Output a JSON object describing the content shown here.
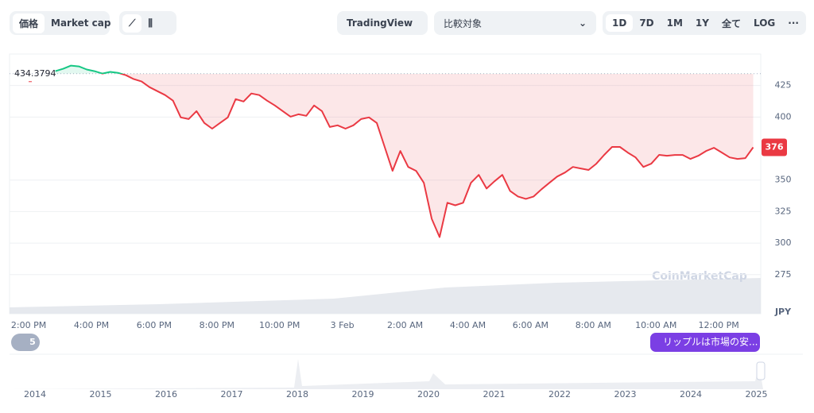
{
  "toolbar": {
    "tabs": [
      "価格",
      "Market cap"
    ],
    "tradingview": "TradingView",
    "compare": "比較対象",
    "ranges": [
      "1D",
      "7D",
      "1M",
      "1Y",
      "全て",
      "LOG"
    ],
    "more": "···"
  },
  "badge": "5",
  "news": "リップルは市場の安...",
  "watermark": "CoinMarketCap",
  "navigator": {
    "years": [
      "2014",
      "2015",
      "2016",
      "2017",
      "2018",
      "2019",
      "2020",
      "2021",
      "2022",
      "2023",
      "2024",
      "2025"
    ]
  },
  "chart_data": {
    "type": "line",
    "unit": "JPY",
    "baseline": 434.3794,
    "baseline_label": "434.3794",
    "last_label": "376",
    "up_color": "#16c784",
    "down_color": "#ea3943",
    "grid": true,
    "xlim": [
      13.39,
      37.34
    ],
    "ylim": [
      244,
      450
    ],
    "xticks": [
      {
        "value": 14,
        "label": "2:00 PM"
      },
      {
        "value": 16,
        "label": "4:00 PM"
      },
      {
        "value": 18,
        "label": "6:00 PM"
      },
      {
        "value": 20,
        "label": "8:00 PM"
      },
      {
        "value": 22,
        "label": "10:00 PM"
      },
      {
        "value": 24,
        "label": "3 Feb"
      },
      {
        "value": 26,
        "label": "2:00 AM"
      },
      {
        "value": 28,
        "label": "4:00 AM"
      },
      {
        "value": 30,
        "label": "6:00 AM"
      },
      {
        "value": 32,
        "label": "8:00 AM"
      },
      {
        "value": 34,
        "label": "10:00 AM"
      },
      {
        "value": 36,
        "label": "12:00 PM"
      }
    ],
    "yticks": [
      275,
      300,
      325,
      350,
      400,
      425
    ],
    "x": [
      14.85,
      15.1,
      15.35,
      15.6,
      15.85,
      16.1,
      16.35,
      16.6,
      16.85,
      17.1,
      17.35,
      17.6,
      17.85,
      18.1,
      18.35,
      18.6,
      18.85,
      19.1,
      19.35,
      19.6,
      19.85,
      20.1,
      20.35,
      20.6,
      20.85,
      21.1,
      21.35,
      21.6,
      21.85,
      22.1,
      22.35,
      22.6,
      22.85,
      23.1,
      23.35,
      23.6,
      23.85,
      24.1,
      24.35,
      24.6,
      24.85,
      25.1,
      25.35,
      25.6,
      25.85,
      26.1,
      26.35,
      26.6,
      26.85,
      27.1,
      27.35,
      27.6,
      27.85,
      28.1,
      28.35,
      28.6,
      28.85,
      29.1,
      29.35,
      29.6,
      29.85,
      30.1,
      30.35,
      30.6,
      30.85,
      31.1,
      31.35,
      31.6,
      31.85,
      32.1,
      32.35,
      32.6,
      32.85,
      33.1,
      33.35,
      33.6,
      33.85,
      34.1,
      34.35,
      34.6,
      34.85,
      35.1,
      35.35,
      35.6,
      35.85,
      36.1,
      36.35,
      36.6,
      36.85,
      37.1
    ],
    "values": [
      436.4,
      438.3,
      440.8,
      440.2,
      437.7,
      436.4,
      434.5,
      435.8,
      435.1,
      433.2,
      430.1,
      428.2,
      423.7,
      420.6,
      417.4,
      413.0,
      399.7,
      398.4,
      404.7,
      395.3,
      390.8,
      395.3,
      399.7,
      414.2,
      412.3,
      418.7,
      417.4,
      413.0,
      409.2,
      404.7,
      400.3,
      402.2,
      401.0,
      409.2,
      404.7,
      392.1,
      393.4,
      390.8,
      393.4,
      398.4,
      399.7,
      395.3,
      376.3,
      357.3,
      373.1,
      360.4,
      357.3,
      347.8,
      319.3,
      304.8,
      332.0,
      330.0,
      332.0,
      347.8,
      354.1,
      343.3,
      349.0,
      354.1,
      341.4,
      337.0,
      335.1,
      337.0,
      342.7,
      347.8,
      352.8,
      356.0,
      360.4,
      359.2,
      358.0,
      363.0,
      370.0,
      376.3,
      376.3,
      371.8,
      368.0,
      360.4,
      363.0,
      370.0,
      369.3,
      369.9,
      369.9,
      366.8,
      369.3,
      373.1,
      375.6,
      371.8,
      368.0,
      366.8,
      367.4,
      376.0
    ]
  }
}
